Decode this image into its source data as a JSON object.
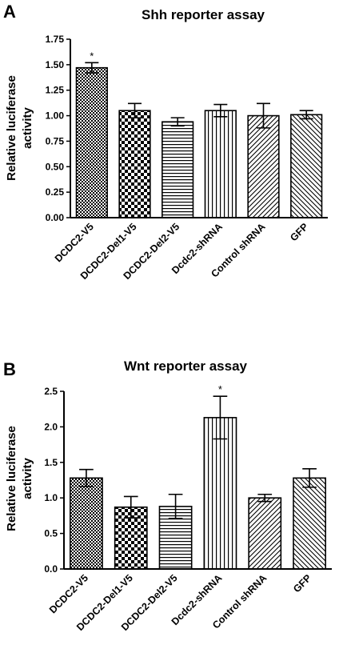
{
  "chart_data": [
    {
      "type": "bar",
      "panel": "A",
      "title": "Shh reporter assay",
      "xlabel": "",
      "ylabel_lines": [
        "Relative luciferase",
        "activity"
      ],
      "categories": [
        "DCDC2-V5",
        "DCDC2-Del1-V5",
        "DCDC2-Del2-V5",
        "Dcdc2-shRNA",
        "Control shRNA",
        "GFP"
      ],
      "values": [
        1.47,
        1.05,
        0.94,
        1.05,
        1.0,
        1.01
      ],
      "errors": [
        0.05,
        0.07,
        0.04,
        0.06,
        0.12,
        0.04
      ],
      "significance": [
        "*",
        "",
        "",
        "",
        "",
        ""
      ],
      "patterns": [
        "checker-fine",
        "checker-coarse",
        "horizontal",
        "vertical",
        "diagonal-up",
        "diagonal-down"
      ],
      "ylim": [
        0,
        1.75
      ],
      "yticks": [
        "0.00",
        "0.25",
        "0.50",
        "0.75",
        "1.00",
        "1.25",
        "1.50",
        "1.75"
      ]
    },
    {
      "type": "bar",
      "panel": "B",
      "title": "Wnt reporter assay",
      "xlabel": "",
      "ylabel_lines": [
        "Relative luciferase",
        "activity"
      ],
      "categories": [
        "DCDC2-V5",
        "DCDC2-Del1-V5",
        "DCDC2-Del2-V5",
        "Dcdc2-shRNA",
        "Control shRNA",
        "GFP"
      ],
      "values": [
        1.28,
        0.87,
        0.88,
        2.13,
        1.0,
        1.28
      ],
      "errors": [
        0.12,
        0.15,
        0.17,
        0.3,
        0.05,
        0.13
      ],
      "significance": [
        "",
        "",
        "",
        "*",
        "",
        ""
      ],
      "patterns": [
        "checker-fine",
        "checker-coarse",
        "horizontal",
        "vertical",
        "diagonal-up",
        "diagonal-down"
      ],
      "ylim": [
        0,
        2.5
      ],
      "yticks": [
        "0.0",
        "0.5",
        "1.0",
        "1.5",
        "2.0",
        "2.5"
      ]
    }
  ]
}
